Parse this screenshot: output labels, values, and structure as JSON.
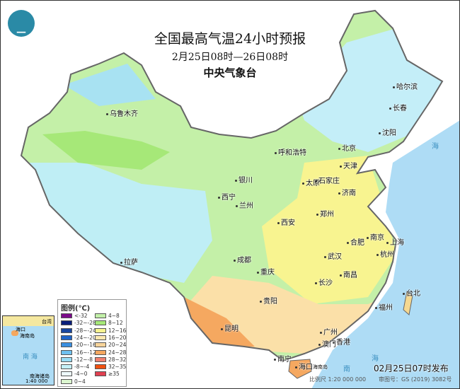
{
  "header": {
    "title": "全国最高气温24小时预报",
    "period": "2月25日08时—26日08时",
    "issuer": "中央气象台",
    "logo_icon": "cma-dragon-logo"
  },
  "cities": [
    "乌鲁木齐",
    "哈尔滨",
    "长春",
    "沈阳",
    "呼和浩特",
    "北京",
    "天津",
    "银川",
    "太原",
    "石家庄",
    "济南",
    "西宁",
    "兰州",
    "郑州",
    "西安",
    "南京",
    "合肥",
    "上海",
    "拉萨",
    "成都",
    "武汉",
    "杭州",
    "重庆",
    "长沙",
    "南昌",
    "贵阳",
    "昆明",
    "福州",
    "台北",
    "南宁",
    "广州",
    "香港",
    "澳门",
    "海口",
    "海南岛"
  ],
  "sea_labels": [
    "海",
    "南",
    "海"
  ],
  "legend": {
    "title": "图例(℃)",
    "items": [
      {
        "label": "<-32",
        "color": "#7b0a8a"
      },
      {
        "label": "-32~-28",
        "color": "#0a1f7a"
      },
      {
        "label": "-28~-24",
        "color": "#1746a0"
      },
      {
        "label": "-24~-20",
        "color": "#1e64c8"
      },
      {
        "label": "-20~-16",
        "color": "#3a8fe0"
      },
      {
        "label": "-16~-12",
        "color": "#6ec0f0"
      },
      {
        "label": "-12~-8",
        "color": "#98dcf5"
      },
      {
        "label": "-8~-4",
        "color": "#c4f0f8"
      },
      {
        "label": "-4~0",
        "color": "#eefafc"
      },
      {
        "label": "0~4",
        "color": "#dcf7d0"
      },
      {
        "label": "4~8",
        "color": "#c2f0a8"
      },
      {
        "label": "8~12",
        "color": "#a6e878"
      },
      {
        "label": "12~16",
        "color": "#f8f490"
      },
      {
        "label": "16~20",
        "color": "#fbe8b0"
      },
      {
        "label": "20~24",
        "color": "#f8d49a"
      },
      {
        "label": "24~28",
        "color": "#f5a860"
      },
      {
        "label": "28~32",
        "color": "#f08070"
      },
      {
        "label": "32~35",
        "color": "#f05010"
      },
      {
        "label": "≥35",
        "color": "#e04050"
      }
    ]
  },
  "inset": {
    "label_city1": "海口",
    "label_island": "海南岛",
    "label_taiwan": "台湾",
    "sea": "南 海",
    "islands": "南海诸岛",
    "scale": "1:40 000 000"
  },
  "footer": {
    "issued": "02月25日07时发布",
    "scale": "比例尺 1:20 000 000",
    "review": "审图号：GS (2019) 3082号"
  }
}
